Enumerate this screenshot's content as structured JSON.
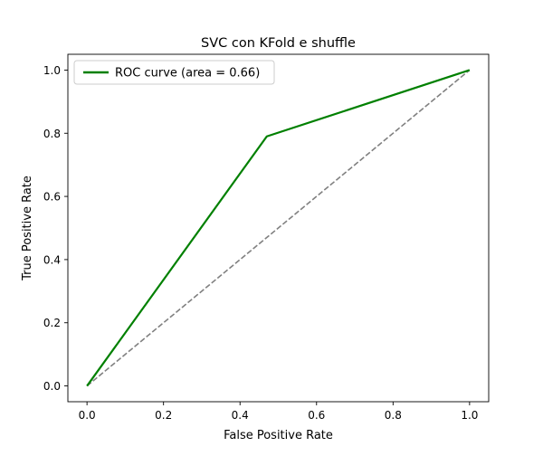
{
  "chart_data": {
    "type": "line",
    "title": "SVC con KFold e shuffle",
    "xlabel": "False Positive Rate",
    "ylabel": "True Positive Rate",
    "xlim": [
      -0.05,
      1.05
    ],
    "ylim": [
      -0.05,
      1.05
    ],
    "xticks": [
      "0.0",
      "0.2",
      "0.4",
      "0.6",
      "0.8",
      "1.0"
    ],
    "yticks": [
      "0.0",
      "0.2",
      "0.4",
      "0.6",
      "0.8",
      "1.0"
    ],
    "grid": false,
    "legend_position": "upper left",
    "series": [
      {
        "name": "ROC curve (area = 0.66)",
        "color": "#008000",
        "style": "solid",
        "x": [
          0.0,
          0.47,
          1.0
        ],
        "y": [
          0.0,
          0.79,
          1.0
        ]
      },
      {
        "color": "#808080",
        "style": "dashed",
        "x": [
          0.0,
          1.0
        ],
        "y": [
          0.0,
          1.0
        ]
      }
    ]
  }
}
